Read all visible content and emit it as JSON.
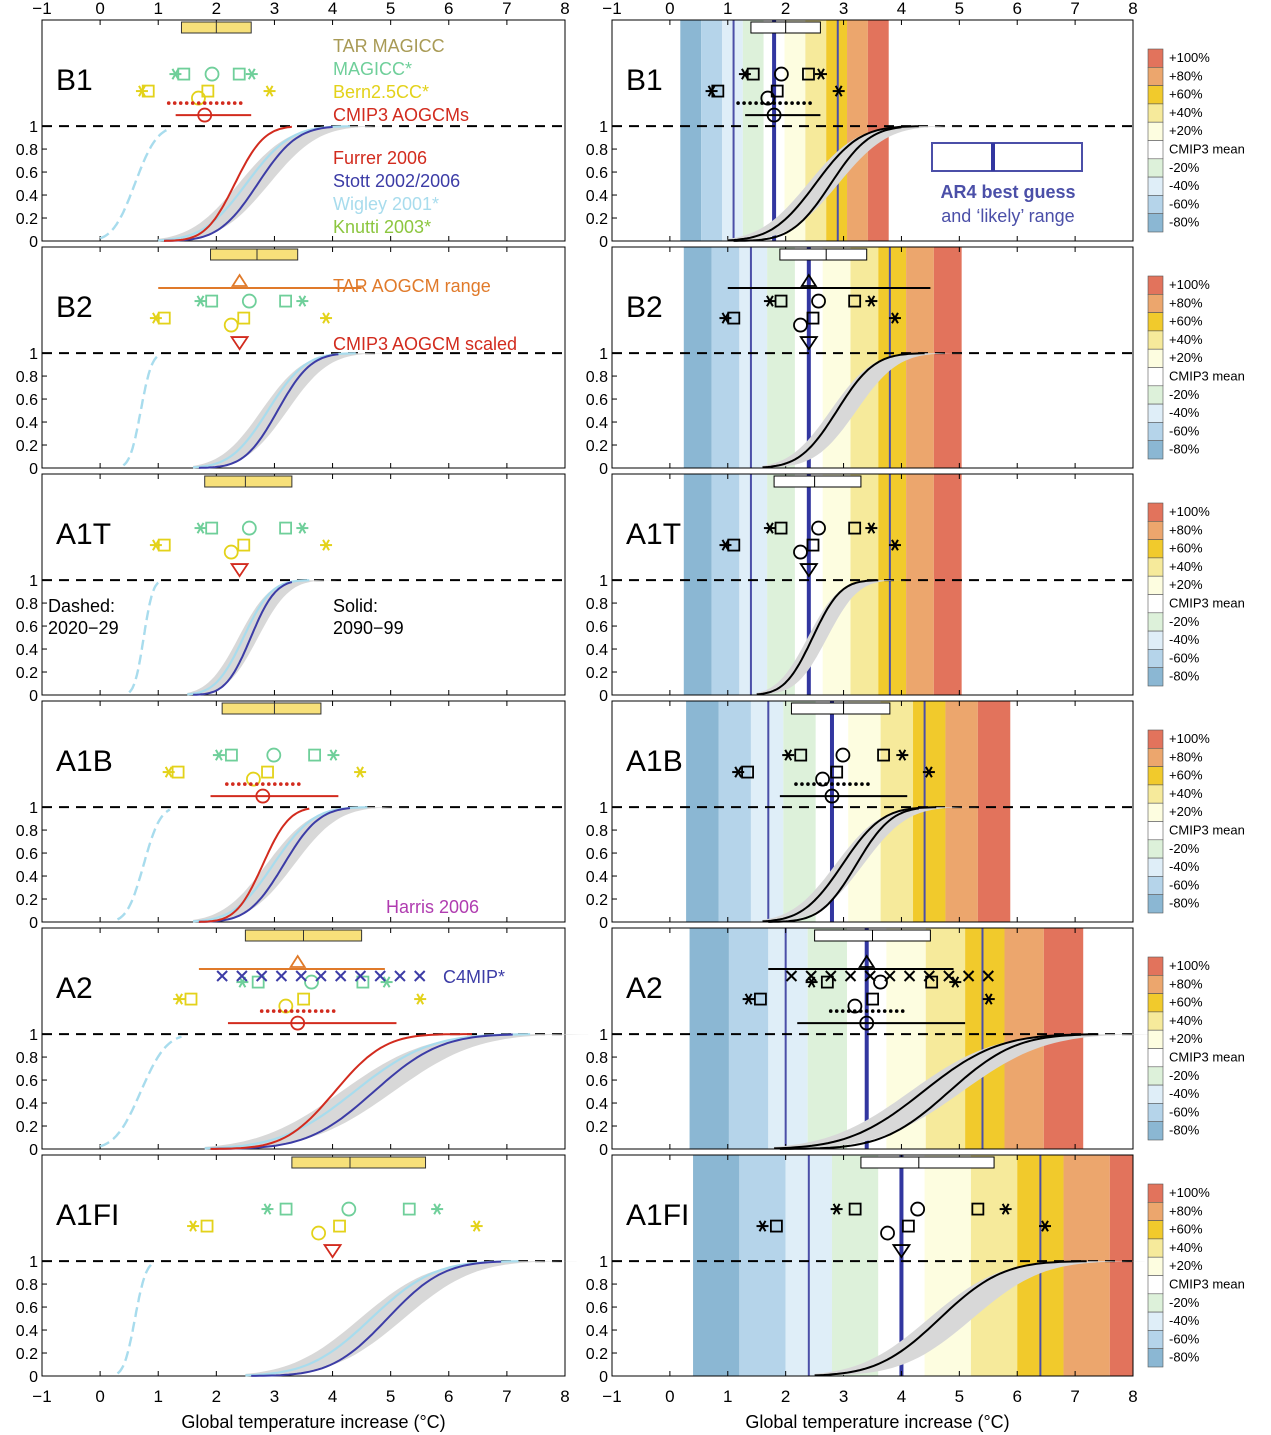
{
  "chart_data": {
    "type": "line",
    "title": "",
    "xlabel": "Global temperature increase (°C)",
    "xlim": [
      -1,
      8
    ],
    "x_ticks": [
      "−1",
      "0",
      "1",
      "2",
      "3",
      "4",
      "5",
      "6",
      "7",
      "8"
    ],
    "y_ticks": [
      "0",
      "0.2",
      "0.4",
      "0.6",
      "0.8",
      "1"
    ],
    "legend": {
      "top": [
        {
          "label": "TAR MAGICC",
          "color": "#a89a55"
        },
        {
          "label": "MAGICC*",
          "color": "#6fcf9a"
        },
        {
          "label": "Bern2.5CC*",
          "color": "#e3d21a"
        },
        {
          "label": "CMIP3 AOGCMs",
          "color": "#d22b1e"
        }
      ],
      "pdf": [
        {
          "label": "Furrer 2006",
          "color": "#d22b1e"
        },
        {
          "label": "Stott 2002/2006",
          "color": "#3c3ca6"
        },
        {
          "label": "Wigley 2001*",
          "color": "#a8dced"
        },
        {
          "label": "Knutti 2003*",
          "color": "#8cc63f"
        }
      ],
      "tar_range": "TAR AOGCM range",
      "cmip3_scaled": "CMIP3 AOGCM scaled",
      "harris": "Harris 2006",
      "c4mip": "C4MIP*",
      "dashed": [
        "Dashed:",
        "2020−29"
      ],
      "solid": [
        "Solid:",
        "2090−99"
      ],
      "ar4": [
        "AR4 best guess",
        "and ‘likely’ range"
      ]
    },
    "colorbar_labels": [
      "+100%",
      "+80%",
      "+60%",
      "+40%",
      "+20%",
      "CMIP3 mean",
      "-20%",
      "-40%",
      "-60%",
      "-80%"
    ],
    "colorbar_colors": [
      "#e2735c",
      "#eca66d",
      "#f1ca2c",
      "#f6ea9b",
      "#fdfde0",
      "#ffffff",
      "#ddf1da",
      "#dfeef8",
      "#b5d4ea",
      "#8bb7d3"
    ],
    "scenarios": [
      {
        "name": "B1",
        "cmip3_mean": 1.8,
        "likely": [
          1.1,
          2.9
        ],
        "tar_box": [
          1.4,
          2.6
        ],
        "tar_mid": 2.0,
        "rings": [
          0.3,
          0.5,
          0.8,
          1.05,
          1.35,
          1.75,
          1.95
        ],
        "pdf_range": [
          1.0,
          4.3
        ],
        "dashed_range": [
          0.0,
          1.2
        ],
        "has_cmip3": true
      },
      {
        "name": "B2",
        "cmip3_mean": 2.4,
        "likely": [
          1.4,
          3.8
        ],
        "tar_box": [
          1.9,
          3.4
        ],
        "tar_mid": 2.7,
        "tar_range": [
          1.0,
          4.5
        ],
        "rings": [
          0.3,
          0.5,
          0.8,
          1.05,
          1.35,
          1.75,
          1.95
        ],
        "pdf_range": [
          1.6,
          4.4
        ],
        "dashed_range": [
          0.4,
          1.0
        ],
        "has_cmip3": false
      },
      {
        "name": "A1T",
        "cmip3_mean": 2.4,
        "likely": [
          1.4,
          3.8
        ],
        "tar_box": [
          1.8,
          3.3
        ],
        "tar_mid": 2.5,
        "rings": [
          0.3,
          0.5,
          0.8,
          1.05,
          1.35,
          1.75,
          1.95
        ],
        "pdf_range": [
          1.5,
          3.6
        ],
        "dashed_range": [
          0.5,
          1.0
        ],
        "has_cmip3": false
      },
      {
        "name": "A1B",
        "cmip3_mean": 2.8,
        "likely": [
          1.7,
          4.4
        ],
        "tar_box": [
          2.1,
          3.8
        ],
        "tar_mid": 3.0,
        "rings": [
          0.3,
          0.5,
          0.8,
          1.05,
          1.35,
          1.75,
          1.95
        ],
        "pdf_range": [
          1.6,
          4.6
        ],
        "dashed_range": [
          0.3,
          1.2
        ],
        "has_cmip3": true
      },
      {
        "name": "A2",
        "cmip3_mean": 3.4,
        "likely": [
          2.0,
          5.4
        ],
        "tar_box": [
          2.5,
          4.5
        ],
        "tar_mid": 3.5,
        "tar_range": [
          1.7,
          4.9
        ],
        "rings": [
          0.3,
          0.5,
          0.8,
          1.05,
          1.35,
          1.75,
          1.95
        ],
        "pdf_range": [
          1.8,
          7.4
        ],
        "dashed_range": [
          0.0,
          1.4
        ],
        "has_cmip3": true
      },
      {
        "name": "A1FI",
        "cmip3_mean": 4.0,
        "likely": [
          2.4,
          6.4
        ],
        "tar_box": [
          3.3,
          5.6
        ],
        "tar_mid": 4.3,
        "rings": [
          0.3,
          0.5,
          0.8,
          1.05,
          1.35,
          1.75,
          1.95
        ],
        "pdf_range": [
          2.5,
          7.2
        ],
        "dashed_range": [
          0.3,
          0.9
        ],
        "has_cmip3": false
      }
    ]
  }
}
